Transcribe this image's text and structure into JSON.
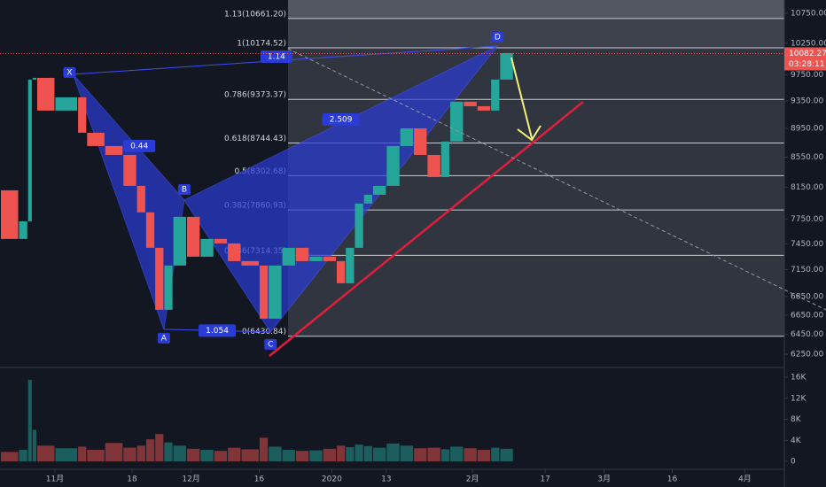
{
  "chart_data": {
    "type": "candlestick",
    "x": [
      -12,
      -8,
      -6,
      -5,
      -4,
      0,
      5,
      7,
      11,
      15,
      18,
      20,
      22,
      24,
      26,
      29,
      32,
      35,
      38,
      41,
      45,
      47,
      50,
      53,
      56,
      59,
      62,
      64,
      66,
      68,
      70,
      73,
      76,
      79,
      82,
      85,
      87,
      90,
      93,
      96,
      98,
      101
    ],
    "close": [
      8111,
      7507,
      7721,
      9673,
      9700,
      9208,
      9404,
      8889,
      8703,
      8581,
      8169,
      7831,
      7402,
      6707,
      7196,
      7776,
      7298,
      7507,
      7454,
      7247,
      7196,
      6613,
      7196,
      7402,
      7247,
      7298,
      7247,
      6996,
      7402,
      7942,
      8054,
      8169,
      8703,
      8951,
      8581,
      8284,
      8765,
      9339,
      9272,
      9208,
      9673,
      10090
    ],
    "volume": [
      2500,
      1800,
      2200,
      15500,
      6000,
      3000,
      2500,
      2800,
      2200,
      3500,
      2600,
      3000,
      4200,
      5200,
      3600,
      3000,
      2400,
      2200,
      2000,
      2600,
      2300,
      4500,
      2800,
      2200,
      2000,
      2100,
      2400,
      3000,
      2700,
      3200,
      2900,
      2600,
      3400,
      3000,
      2500,
      2600,
      2300,
      2800,
      2500,
      2200,
      2600,
      2400
    ],
    "up_color": "#26a69a",
    "down_color": "#ef5350",
    "xlim": [
      -12.1,
      160.7
    ],
    "xticks": [
      {
        "value": 0,
        "label": "11月"
      },
      {
        "value": 17,
        "label": "18"
      },
      {
        "value": 30,
        "label": "12月"
      },
      {
        "value": 45,
        "label": "16"
      },
      {
        "value": 61,
        "label": "2020"
      },
      {
        "value": 73,
        "label": "13"
      },
      {
        "value": 92,
        "label": "2月"
      },
      {
        "value": 108,
        "label": "17"
      },
      {
        "value": 121,
        "label": "3月"
      },
      {
        "value": 136,
        "label": "16"
      },
      {
        "value": 152,
        "label": "4月"
      }
    ],
    "ylim": [
      6119,
      10979
    ],
    "log": true,
    "yticks": [
      {
        "value": 10750,
        "label": "10750.00"
      },
      {
        "value": 10250,
        "label": "10250.00"
      },
      {
        "value": 9750,
        "label": "9750.00"
      },
      {
        "value": 9350,
        "label": "9350.00"
      },
      {
        "value": 8950,
        "label": "8950.00"
      },
      {
        "value": 8550,
        "label": "8550.00"
      },
      {
        "value": 8150,
        "label": "8150.00"
      },
      {
        "value": 7750,
        "label": "7750.00"
      },
      {
        "value": 7450,
        "label": "7450.00"
      },
      {
        "value": 7150,
        "label": "7150.00"
      },
      {
        "value": 6850,
        "label": "6850.00"
      },
      {
        "value": 6650,
        "label": "6650.00"
      },
      {
        "value": 6450,
        "label": "6450.00"
      },
      {
        "value": 6250,
        "label": "6250.00"
      }
    ],
    "vol_ylim": [
      -1500,
      17850
    ],
    "vol_yticks": [
      {
        "value": 16000,
        "label": "16K"
      },
      {
        "value": 12000,
        "label": "12K"
      },
      {
        "value": 8000,
        "label": "8K"
      },
      {
        "value": 4000,
        "label": "4K"
      },
      0
    ],
    "fib_levels": [
      {
        "label": "1.13(10661.20)",
        "price": 10661.2
      },
      {
        "label": "1(10174.52)",
        "price": 10174.52
      },
      {
        "label": "0.786(9373.37)",
        "price": 9373.37
      },
      {
        "label": "0.618(8744.43)",
        "price": 8744.43
      },
      {
        "label": "0.5(8302.68)",
        "price": 8302.68
      },
      {
        "label": "0.382(7860.93)",
        "price": 7860.93
      },
      {
        "label": "0.236(7314.35)",
        "price": 7314.35
      },
      {
        "label": "0(6430.84)",
        "price": 6430.84
      }
    ],
    "pattern": {
      "points": [
        {
          "label": "X",
          "day": 4,
          "price": 9755
        },
        {
          "label": "A",
          "day": 24,
          "price": 6502
        },
        {
          "label": "B",
          "day": 28.5,
          "price": 7986
        },
        {
          "label": "C",
          "day": 47.5,
          "price": 6475
        },
        {
          "label": "D",
          "day": 97.5,
          "price": 10204
        }
      ],
      "ratios": [
        "0.44",
        "1.14",
        "1.054",
        "2.509"
      ]
    },
    "last_price": 10082.27,
    "countdown": "03:28:11"
  }
}
